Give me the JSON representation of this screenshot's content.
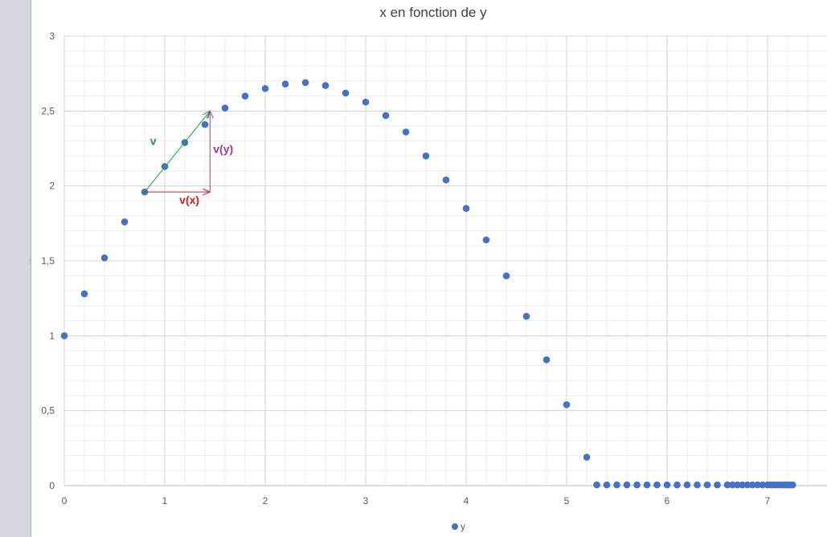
{
  "chart_data": {
    "type": "scatter",
    "title": "x en fonction de y",
    "xlabel": "",
    "ylabel": "",
    "xlim": [
      0,
      7.6
    ],
    "ylim": [
      0,
      3
    ],
    "xticks": [
      0,
      1,
      2,
      3,
      4,
      5,
      6,
      7
    ],
    "xtick_labels": [
      "0",
      "1",
      "2",
      "3",
      "4",
      "5",
      "6",
      "7"
    ],
    "yticks": [
      0,
      0.5,
      1,
      1.5,
      2,
      2.5,
      3
    ],
    "ytick_labels": [
      "0",
      "0,5",
      "1",
      "1,5",
      "2",
      "2,5",
      "3"
    ],
    "grid": true,
    "minor_grid": true,
    "legend_position": "bottom",
    "series": [
      {
        "name": "y",
        "color": "#4472c4",
        "x": [
          0,
          0.2,
          0.4,
          0.6,
          0.8,
          1.0,
          1.2,
          1.4,
          1.6,
          1.8,
          2.0,
          2.2,
          2.4,
          2.6,
          2.8,
          3.0,
          3.2,
          3.4,
          3.6,
          3.8,
          4.0,
          4.2,
          4.4,
          4.6,
          4.8,
          5.0,
          5.2,
          5.3,
          5.4,
          5.5,
          5.6,
          5.7,
          5.8,
          5.9,
          6.0,
          6.1,
          6.2,
          6.3,
          6.4,
          6.5,
          6.6,
          6.65,
          6.7,
          6.75,
          6.8,
          6.85,
          6.9,
          6.95,
          7.0,
          7.03,
          7.06,
          7.09,
          7.12,
          7.15,
          7.17,
          7.19,
          7.21,
          7.23,
          7.25
        ],
        "y": [
          1.0,
          1.28,
          1.52,
          1.76,
          1.96,
          2.13,
          2.29,
          2.41,
          2.52,
          2.6,
          2.65,
          2.68,
          2.69,
          2.67,
          2.62,
          2.56,
          2.47,
          2.36,
          2.2,
          2.04,
          1.85,
          1.64,
          1.4,
          1.13,
          0.84,
          0.54,
          0.19,
          0.005,
          0.005,
          0.005,
          0.005,
          0.005,
          0.005,
          0.005,
          0.005,
          0.005,
          0.005,
          0.005,
          0.005,
          0.005,
          0.005,
          0.005,
          0.005,
          0.005,
          0.005,
          0.005,
          0.005,
          0.005,
          0.005,
          0.005,
          0.005,
          0.005,
          0.005,
          0.005,
          0.005,
          0.005,
          0.005,
          0.005,
          0.005
        ]
      }
    ],
    "annotations": [
      {
        "label": "v",
        "color": "#1aa33a",
        "from": [
          0.8,
          1.96
        ],
        "to": [
          1.45,
          2.5
        ],
        "arrow": true
      },
      {
        "label": "v(x)",
        "color": "#d42020",
        "from": [
          0.8,
          1.96
        ],
        "to": [
          1.45,
          1.96
        ],
        "arrow": true
      },
      {
        "label": "v(y)",
        "color": "#9b3b9b",
        "from": [
          1.45,
          1.96
        ],
        "to": [
          1.45,
          2.5
        ],
        "arrow": true
      }
    ]
  },
  "legend": {
    "label": "y"
  }
}
